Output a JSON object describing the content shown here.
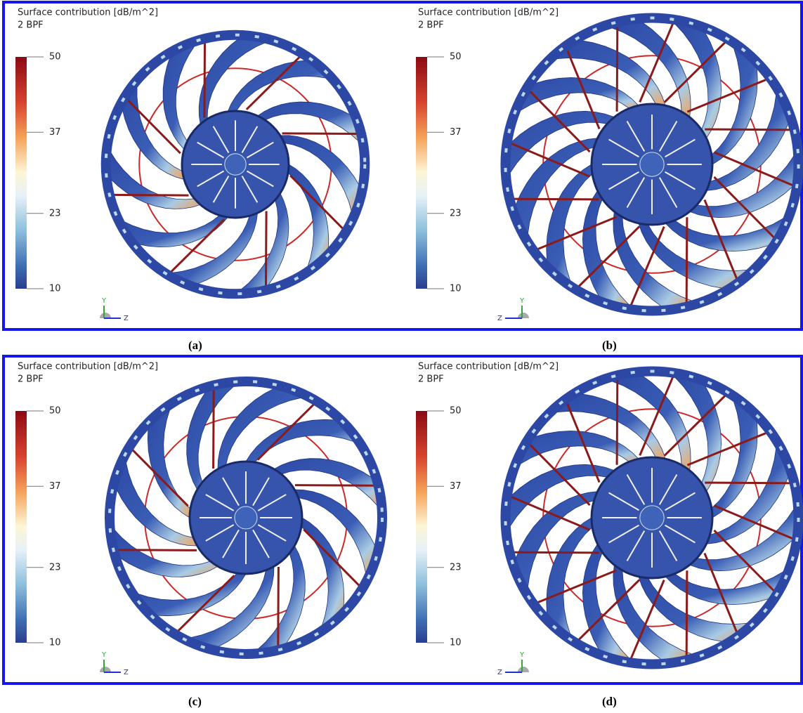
{
  "panels": [
    {
      "title": "Surface contribution [dB/m^2]",
      "subtitle": "2 BPF",
      "colorbar_ticks": [
        50,
        37,
        23,
        10
      ],
      "axis_labels": [
        "Y",
        "Z"
      ],
      "caption": "(a)"
    },
    {
      "title": "Surface contribution [dB/m^2]",
      "subtitle": "2 BPF",
      "colorbar_ticks": [
        50,
        37,
        23,
        10
      ],
      "axis_labels": [
        "Y",
        "Z"
      ],
      "caption": "(b)"
    },
    {
      "title": "Surface contribution [dB/m^2]",
      "subtitle": "2 BPF",
      "colorbar_ticks": [
        50,
        37,
        23,
        10
      ],
      "axis_labels": [
        "Y",
        "Z"
      ],
      "caption": "(c)"
    },
    {
      "title": "Surface contribution [dB/m^2]",
      "subtitle": "2 BPF",
      "colorbar_ticks": [
        50,
        37,
        23,
        10
      ],
      "axis_labels": [
        "Y",
        "Z"
      ],
      "caption": "(d)"
    }
  ]
}
